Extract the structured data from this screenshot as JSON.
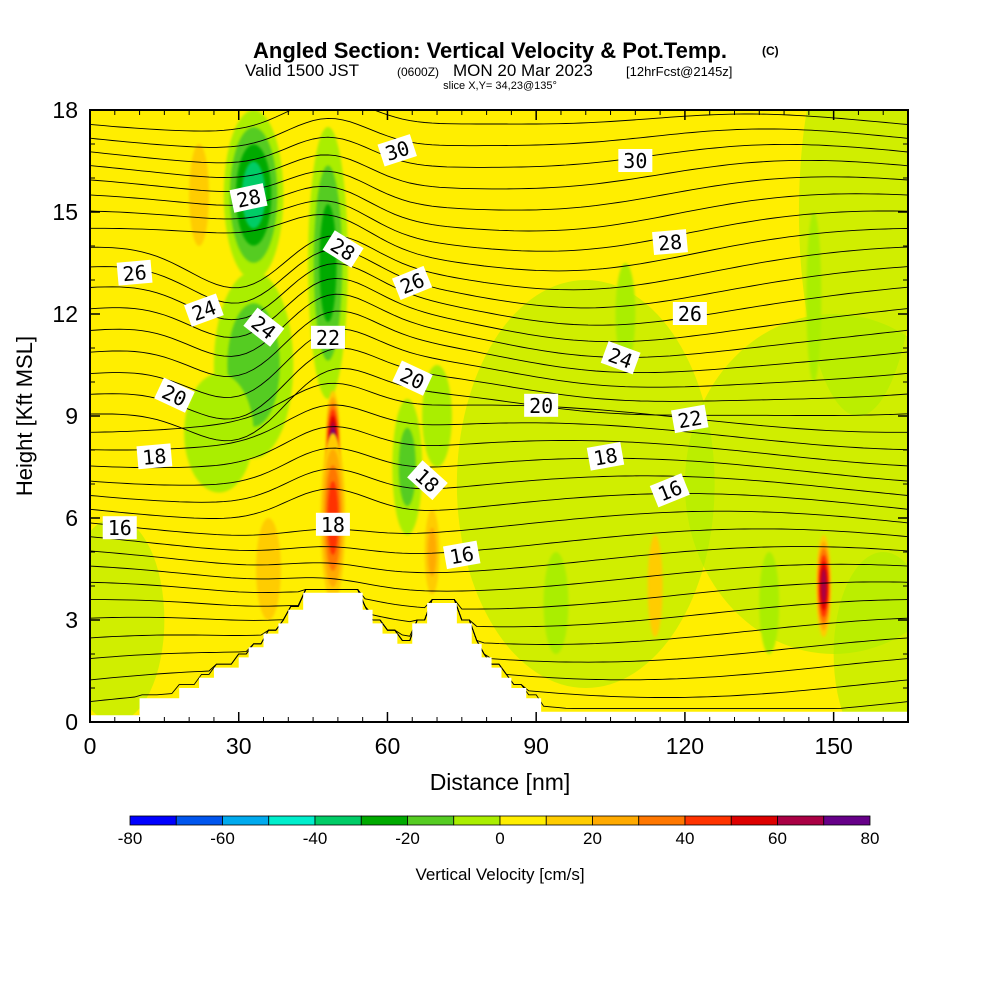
{
  "header": {
    "title": "Angled Section: Vertical Velocity & Pot.Temp.",
    "title_mark": "(C)",
    "valid_prefix": "Valid 1500 JST",
    "valid_utc": "(0600Z)",
    "valid_date": "MON 20 Mar 2023",
    "forecast": "[12hrFcst@2145z]",
    "slice": "slice X,Y= 34,23@135°"
  },
  "colorbar": {
    "title": "Vertical Velocity [cm/s]",
    "tick_labels": [
      "-80",
      "-60",
      "-40",
      "-20",
      "0",
      "20",
      "40",
      "60",
      "80"
    ],
    "colors": [
      "#0000ff",
      "#0055ee",
      "#00aaee",
      "#00eecc",
      "#00cc66",
      "#00aa00",
      "#55cc22",
      "#aaee00",
      "#ffee00",
      "#ffcc00",
      "#ffaa00",
      "#ff7700",
      "#ff3300",
      "#dd0000",
      "#aa0044",
      "#660088"
    ]
  },
  "chart_data": {
    "type": "heatmap",
    "title": "Angled Section: Vertical Velocity & Pot.Temp.",
    "xlabel": "Distance [nm]",
    "ylabel": "Height [Kft MSL]",
    "xlim": [
      0,
      165
    ],
    "ylim": [
      0,
      18
    ],
    "x_ticks": [
      0,
      30,
      60,
      90,
      120,
      150
    ],
    "y_ticks": [
      0,
      3,
      6,
      9,
      12,
      15,
      18
    ],
    "x_tick_labels": [
      "0",
      "30",
      "60",
      "90",
      "120",
      "150"
    ],
    "y_tick_labels": [
      "0",
      "3",
      "6",
      "9",
      "12",
      "15",
      "18"
    ],
    "background_value_cm_s": 0,
    "filled_features_cm_s": [
      {
        "x": 33,
        "y": 15.5,
        "w": 12,
        "h": 5.0,
        "peak": -42
      },
      {
        "x": 33,
        "y": 10.5,
        "w": 16,
        "h": 5.5,
        "peak": -25
      },
      {
        "x": 48,
        "y": 13.5,
        "w": 8,
        "h": 8.0,
        "peak": -30
      },
      {
        "x": 26,
        "y": 8.5,
        "w": 14,
        "h": 3.5,
        "peak": -15
      },
      {
        "x": 64,
        "y": 7.5,
        "w": 6,
        "h": 4.0,
        "peak": -20
      },
      {
        "x": 70,
        "y": 9.0,
        "w": 6,
        "h": 3.0,
        "peak": -12
      },
      {
        "x": 94,
        "y": 3.5,
        "w": 5,
        "h": 3.0,
        "peak": -15
      },
      {
        "x": 108,
        "y": 12.0,
        "w": 4,
        "h": 3.0,
        "peak": -15
      },
      {
        "x": 137,
        "y": 3.5,
        "w": 4,
        "h": 3.0,
        "peak": -15
      },
      {
        "x": 146,
        "y": 12.5,
        "w": 3,
        "h": 5.0,
        "peak": -12
      },
      {
        "x": 49,
        "y": 8.0,
        "w": 3,
        "h": 3.5,
        "peak": 80
      },
      {
        "x": 49,
        "y": 6.0,
        "w": 5,
        "h": 5.0,
        "peak": 45
      },
      {
        "x": 36,
        "y": 4.5,
        "w": 5,
        "h": 3.0,
        "peak": 18
      },
      {
        "x": 69,
        "y": 5.0,
        "w": 3,
        "h": 2.5,
        "peak": 20
      },
      {
        "x": 22,
        "y": 15.5,
        "w": 4,
        "h": 3.0,
        "peak": 15
      },
      {
        "x": 114,
        "y": 4.0,
        "w": 3,
        "h": 3.0,
        "peak": 15
      },
      {
        "x": 148,
        "y": 4.0,
        "w": 3,
        "h": 3.0,
        "peak": 65
      },
      {
        "x": 124,
        "y": 9.5,
        "w": 10,
        "h": 2.0,
        "peak": 8
      },
      {
        "x": 82,
        "y": 17.0,
        "w": 6,
        "h": 2.0,
        "peak": 8
      }
    ],
    "terrain_kft": [
      [
        10,
        0.7
      ],
      [
        18,
        1.0
      ],
      [
        22,
        1.3
      ],
      [
        25,
        1.6
      ],
      [
        30,
        1.9
      ],
      [
        32,
        2.2
      ],
      [
        35,
        2.6
      ],
      [
        38,
        2.9
      ],
      [
        40,
        3.3
      ],
      [
        43,
        3.8
      ],
      [
        52,
        3.8
      ],
      [
        55,
        3.3
      ],
      [
        57,
        2.9
      ],
      [
        59,
        2.6
      ],
      [
        62,
        2.3
      ],
      [
        65,
        2.9
      ],
      [
        68,
        3.5
      ],
      [
        72,
        3.5
      ],
      [
        74,
        2.9
      ],
      [
        77,
        2.3
      ],
      [
        79,
        1.9
      ],
      [
        81,
        1.6
      ],
      [
        83,
        1.3
      ],
      [
        85,
        1.0
      ],
      [
        88,
        0.7
      ],
      [
        91,
        0.3
      ],
      [
        165,
        0.3
      ]
    ],
    "contour_labels": [
      {
        "text": "30",
        "x": 62,
        "y": 16.8,
        "angle": -18
      },
      {
        "text": "30",
        "x": 110,
        "y": 16.5,
        "angle": 0
      },
      {
        "text": "28",
        "x": 32,
        "y": 15.4,
        "angle": -12
      },
      {
        "text": "28",
        "x": 51,
        "y": 13.9,
        "angle": 32
      },
      {
        "text": "28",
        "x": 117,
        "y": 14.1,
        "angle": -5
      },
      {
        "text": "26",
        "x": 9,
        "y": 13.2,
        "angle": -5
      },
      {
        "text": "26",
        "x": 65,
        "y": 12.9,
        "angle": -22
      },
      {
        "text": "26",
        "x": 121,
        "y": 12.0,
        "angle": 0
      },
      {
        "text": "24",
        "x": 23,
        "y": 12.1,
        "angle": -20
      },
      {
        "text": "24",
        "x": 35,
        "y": 11.6,
        "angle": 38
      },
      {
        "text": "24",
        "x": 107,
        "y": 10.7,
        "angle": 20
      },
      {
        "text": "22",
        "x": 48,
        "y": 11.3,
        "angle": 0
      },
      {
        "text": "22",
        "x": 121,
        "y": 8.9,
        "angle": -10
      },
      {
        "text": "20",
        "x": 17,
        "y": 9.6,
        "angle": 25
      },
      {
        "text": "20",
        "x": 65,
        "y": 10.1,
        "angle": 25
      },
      {
        "text": "20",
        "x": 91,
        "y": 9.3,
        "angle": 0
      },
      {
        "text": "18",
        "x": 13,
        "y": 7.8,
        "angle": -5
      },
      {
        "text": "18",
        "x": 68,
        "y": 7.1,
        "angle": 42
      },
      {
        "text": "18",
        "x": 104,
        "y": 7.8,
        "angle": -10
      },
      {
        "text": "18",
        "x": 49,
        "y": 5.8,
        "angle": 0
      },
      {
        "text": "16",
        "x": 6,
        "y": 5.7,
        "angle": 0
      },
      {
        "text": "16",
        "x": 75,
        "y": 4.9,
        "angle": -10
      },
      {
        "text": "16",
        "x": 117,
        "y": 6.8,
        "angle": -22
      }
    ]
  }
}
